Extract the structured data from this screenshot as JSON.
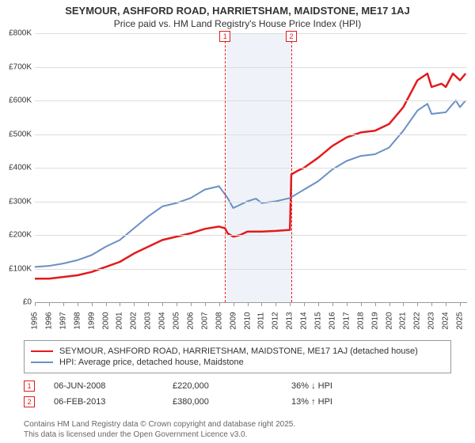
{
  "title_line1": "SEYMOUR, ASHFORD ROAD, HARRIETSHAM, MAIDSTONE, ME17 1AJ",
  "title_line2": "Price paid vs. HM Land Registry's House Price Index (HPI)",
  "chart": {
    "type": "line",
    "background_color": "#ffffff",
    "grid_color": "#dddddd",
    "axis_color": "#999999",
    "label_fontsize": 10,
    "title_fontsize": 13,
    "x_years": [
      1995,
      1996,
      1997,
      1998,
      1999,
      2000,
      2001,
      2002,
      2003,
      2004,
      2005,
      2006,
      2007,
      2008,
      2009,
      2010,
      2011,
      2012,
      2013,
      2014,
      2015,
      2016,
      2017,
      2018,
      2019,
      2020,
      2021,
      2022,
      2023,
      2024,
      2025
    ],
    "xlim": [
      1995,
      2025.5
    ],
    "ylim": [
      0,
      800000
    ],
    "ytick_step": 100000,
    "ytick_labels": [
      "£0",
      "£100K",
      "£200K",
      "£300K",
      "£400K",
      "£500K",
      "£600K",
      "£700K",
      "£800K"
    ],
    "shaded_region": {
      "x_start": 2008.5,
      "x_end": 2013.1,
      "color": "#e8eef7"
    },
    "series": [
      {
        "name": "price_paid",
        "label": "SEYMOUR, ASHFORD ROAD, HARRIETSHAM, MAIDSTONE, ME17 1AJ (detached house)",
        "color": "#e31a1c",
        "line_width": 2.5,
        "points": [
          [
            1995,
            70000
          ],
          [
            1996,
            70000
          ],
          [
            1997,
            75000
          ],
          [
            1998,
            80000
          ],
          [
            1999,
            90000
          ],
          [
            2000,
            105000
          ],
          [
            2001,
            120000
          ],
          [
            2002,
            145000
          ],
          [
            2003,
            165000
          ],
          [
            2004,
            185000
          ],
          [
            2005,
            195000
          ],
          [
            2006,
            205000
          ],
          [
            2007,
            218000
          ],
          [
            2008,
            225000
          ],
          [
            2008.42,
            220000
          ],
          [
            2008.6,
            205000
          ],
          [
            2009,
            195000
          ],
          [
            2009.5,
            200000
          ],
          [
            2010,
            210000
          ],
          [
            2011,
            210000
          ],
          [
            2012,
            212000
          ],
          [
            2013,
            215000
          ],
          [
            2013.1,
            380000
          ],
          [
            2013.5,
            390000
          ],
          [
            2014,
            400000
          ],
          [
            2015,
            430000
          ],
          [
            2016,
            465000
          ],
          [
            2017,
            490000
          ],
          [
            2018,
            505000
          ],
          [
            2019,
            510000
          ],
          [
            2020,
            530000
          ],
          [
            2021,
            580000
          ],
          [
            2022,
            660000
          ],
          [
            2022.7,
            680000
          ],
          [
            2023,
            640000
          ],
          [
            2023.7,
            650000
          ],
          [
            2024,
            640000
          ],
          [
            2024.5,
            680000
          ],
          [
            2025,
            660000
          ],
          [
            2025.4,
            680000
          ]
        ]
      },
      {
        "name": "hpi",
        "label": "HPI: Average price, detached house, Maidstone",
        "color": "#6a8fc5",
        "line_width": 2,
        "points": [
          [
            1995,
            105000
          ],
          [
            1996,
            108000
          ],
          [
            1997,
            115000
          ],
          [
            1998,
            125000
          ],
          [
            1999,
            140000
          ],
          [
            2000,
            165000
          ],
          [
            2001,
            185000
          ],
          [
            2002,
            220000
          ],
          [
            2003,
            255000
          ],
          [
            2004,
            285000
          ],
          [
            2005,
            295000
          ],
          [
            2006,
            310000
          ],
          [
            2007,
            335000
          ],
          [
            2008,
            345000
          ],
          [
            2008.6,
            310000
          ],
          [
            2009,
            280000
          ],
          [
            2010,
            300000
          ],
          [
            2010.6,
            308000
          ],
          [
            2011,
            295000
          ],
          [
            2012,
            300000
          ],
          [
            2013,
            310000
          ],
          [
            2014,
            335000
          ],
          [
            2015,
            360000
          ],
          [
            2016,
            395000
          ],
          [
            2017,
            420000
          ],
          [
            2018,
            435000
          ],
          [
            2019,
            440000
          ],
          [
            2020,
            460000
          ],
          [
            2021,
            510000
          ],
          [
            2022,
            570000
          ],
          [
            2022.7,
            590000
          ],
          [
            2023,
            560000
          ],
          [
            2024,
            565000
          ],
          [
            2024.7,
            600000
          ],
          [
            2025,
            580000
          ],
          [
            2025.4,
            600000
          ]
        ]
      }
    ],
    "markers": [
      {
        "id": "1",
        "x": 2008.42,
        "color": "#e31a1c"
      },
      {
        "id": "2",
        "x": 2013.1,
        "color": "#e31a1c"
      }
    ]
  },
  "events": [
    {
      "id": "1",
      "color": "#e31a1c",
      "date": "06-JUN-2008",
      "price": "£220,000",
      "hpi": "36% ↓ HPI"
    },
    {
      "id": "2",
      "color": "#e31a1c",
      "date": "06-FEB-2013",
      "price": "£380,000",
      "hpi": "13% ↑ HPI"
    }
  ],
  "footer_line1": "Contains HM Land Registry data © Crown copyright and database right 2025.",
  "footer_line2": "This data is licensed under the Open Government Licence v3.0."
}
